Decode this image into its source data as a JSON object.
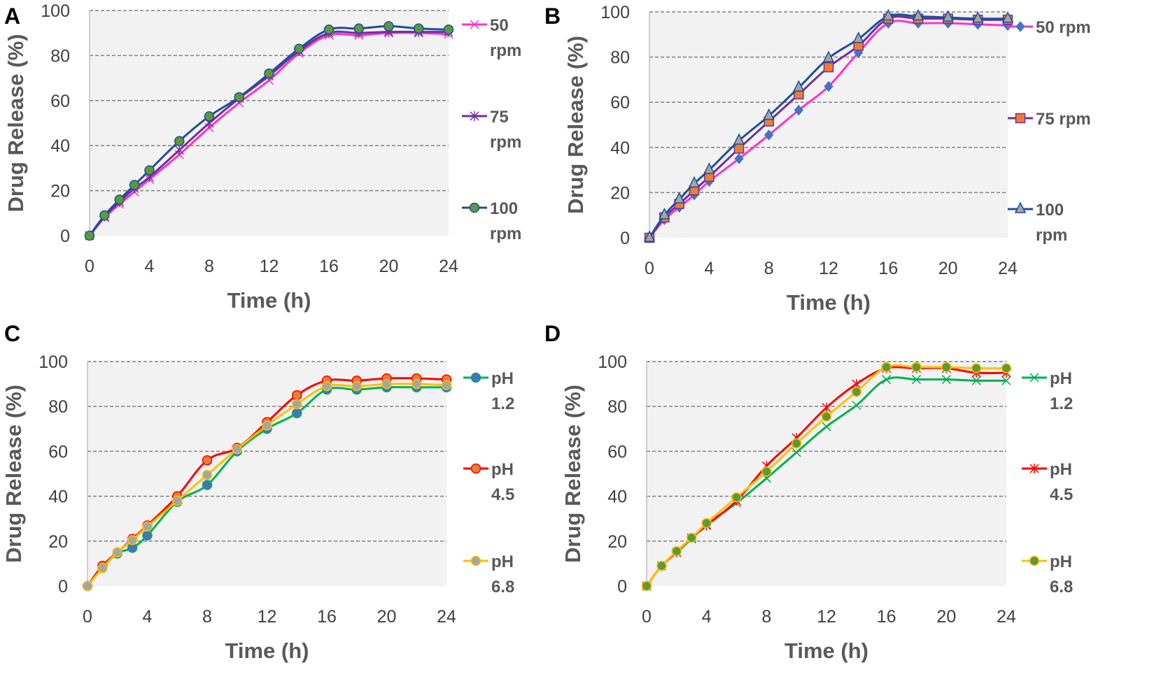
{
  "chart_data": [
    {
      "panel": "A",
      "type": "line",
      "xlabel": "Time (h)",
      "ylabel": "Drug Release (%)",
      "xlim": [
        0,
        24
      ],
      "ylim": [
        0,
        100
      ],
      "xticks": [
        "0",
        "4",
        "8",
        "12",
        "16",
        "20",
        "24"
      ],
      "yticks": [
        "0",
        "20",
        "40",
        "60",
        "80",
        "100"
      ],
      "grid": true,
      "legend": "right",
      "x": [
        0,
        1,
        2,
        3,
        4,
        6,
        8,
        10,
        12,
        14,
        16,
        18,
        20,
        22,
        24
      ],
      "series": [
        {
          "name": "50 rpm",
          "color": "#ff33cc",
          "marker": "x",
          "marker_color": "#ff33cc",
          "values": [
            0,
            8,
            14,
            19.5,
            25,
            36,
            48,
            59,
            69,
            81,
            89,
            89,
            90,
            90,
            89.5
          ]
        },
        {
          "name": "75 rpm",
          "color": "#7030a0",
          "marker": "asterisk",
          "marker_color": "#7030a0",
          "values": [
            0,
            8.5,
            15,
            21,
            26,
            38,
            50,
            61,
            71,
            82,
            90,
            90,
            90.5,
            90.5,
            90.5
          ]
        },
        {
          "name": "100 rpm",
          "color": "#1f4e99",
          "marker": "circle",
          "marker_color": "#5b9a3a",
          "values": [
            0,
            9,
            16,
            22.5,
            29,
            42,
            53,
            61.5,
            72,
            83,
            91.5,
            92,
            93,
            92,
            91.5
          ]
        }
      ]
    },
    {
      "panel": "B",
      "type": "line",
      "xlabel": "Time (h)",
      "ylabel": "Drug Release (%)",
      "xlim": [
        0,
        24
      ],
      "ylim": [
        0,
        100
      ],
      "xticks": [
        "0",
        "4",
        "8",
        "12",
        "16",
        "20",
        "24"
      ],
      "yticks": [
        "0",
        "20",
        "40",
        "60",
        "80",
        "100"
      ],
      "grid": true,
      "legend": "right",
      "x": [
        0,
        1,
        2,
        3,
        4,
        6,
        8,
        10,
        12,
        14,
        16,
        18,
        20,
        22,
        24
      ],
      "series": [
        {
          "name": "50 rpm",
          "color": "#ff33cc",
          "marker": "diamond",
          "marker_color": "#4472c4",
          "values": [
            0,
            8,
            13.5,
            19,
            25,
            35,
            45.5,
            56.5,
            67,
            82,
            95,
            95,
            95,
            94.5,
            94
          ]
        },
        {
          "name": "75 rpm",
          "color": "#7030a0",
          "marker": "square",
          "marker_color": "#ed7d31",
          "values": [
            0,
            9,
            15,
            21,
            27,
            39.5,
            51.5,
            63.5,
            75.5,
            85,
            97,
            97,
            97,
            96.5,
            96.5
          ]
        },
        {
          "name": "100 rpm",
          "color": "#1f4e99",
          "marker": "triangle",
          "marker_color": "#a5a5a5",
          "values": [
            0,
            10,
            17,
            24,
            30,
            43,
            54,
            66.5,
            79.5,
            88,
            98,
            98,
            97.5,
            97,
            97
          ]
        }
      ]
    },
    {
      "panel": "C",
      "type": "line",
      "xlabel": "Time (h)",
      "ylabel": "Drug Release (%)",
      "xlim": [
        0,
        24
      ],
      "ylim": [
        0,
        100
      ],
      "xticks": [
        "0",
        "4",
        "8",
        "12",
        "16",
        "20",
        "24"
      ],
      "yticks": [
        "0",
        "20",
        "40",
        "60",
        "80",
        "100"
      ],
      "grid": true,
      "legend": "right",
      "x": [
        0,
        1,
        2,
        3,
        4,
        6,
        8,
        10,
        12,
        14,
        16,
        18,
        20,
        22,
        24
      ],
      "series": [
        {
          "name": "pH 1.2",
          "color": "#00b050",
          "marker": "circle",
          "marker_color": "#4472c4",
          "values": [
            0,
            8,
            14.5,
            17,
            22.5,
            37.5,
            45,
            60,
            70,
            77,
            87.5,
            87.5,
            88.5,
            88.5,
            88.5
          ]
        },
        {
          "name": "pH 4.5",
          "color": "#ff0000",
          "marker": "circle",
          "marker_color": "#ed7d31",
          "values": [
            0,
            9,
            15,
            21,
            27,
            40,
            56,
            61.5,
            73,
            85,
            91.5,
            91.5,
            92.5,
            92.5,
            92
          ]
        },
        {
          "name": "pH 6.8",
          "color": "#ffc000",
          "marker": "circle",
          "marker_color": "#a5a5a5",
          "values": [
            0,
            8,
            15,
            20.5,
            26.5,
            38,
            49.5,
            61,
            71.5,
            81,
            89,
            89,
            90,
            90,
            89.5
          ]
        }
      ]
    },
    {
      "panel": "D",
      "type": "line",
      "xlabel": "Time (h)",
      "ylabel": "Drug Release (%)",
      "xlim": [
        0,
        24
      ],
      "ylim": [
        0,
        100
      ],
      "xticks": [
        "0",
        "4",
        "8",
        "12",
        "16",
        "20",
        "24"
      ],
      "yticks": [
        "0",
        "20",
        "40",
        "60",
        "80",
        "100"
      ],
      "grid": true,
      "legend": "right",
      "x": [
        0,
        1,
        2,
        3,
        4,
        6,
        8,
        10,
        12,
        14,
        16,
        18,
        20,
        22,
        24
      ],
      "series": [
        {
          "name": "pH 1.2",
          "color": "#00b050",
          "marker": "x",
          "marker_color": "#00b050",
          "values": [
            0,
            9,
            15,
            21,
            27.5,
            37,
            48,
            59.5,
            71,
            80.5,
            92,
            92,
            92,
            91.5,
            91.5
          ]
        },
        {
          "name": "pH 4.5",
          "color": "#ff0000",
          "marker": "asterisk",
          "marker_color": "#ff0000",
          "values": [
            0,
            9,
            15,
            21.5,
            27,
            38,
            53.5,
            66,
            79.5,
            90,
            97,
            97,
            97,
            95,
            95
          ]
        },
        {
          "name": "pH 6.8",
          "color": "#ffc000",
          "marker": "circle",
          "marker_color": "#5b9a3a",
          "values": [
            0,
            9,
            15.5,
            21.5,
            28,
            39.5,
            51,
            63.5,
            75.5,
            86.5,
            97.5,
            97.5,
            97.5,
            97,
            97
          ]
        }
      ]
    }
  ]
}
